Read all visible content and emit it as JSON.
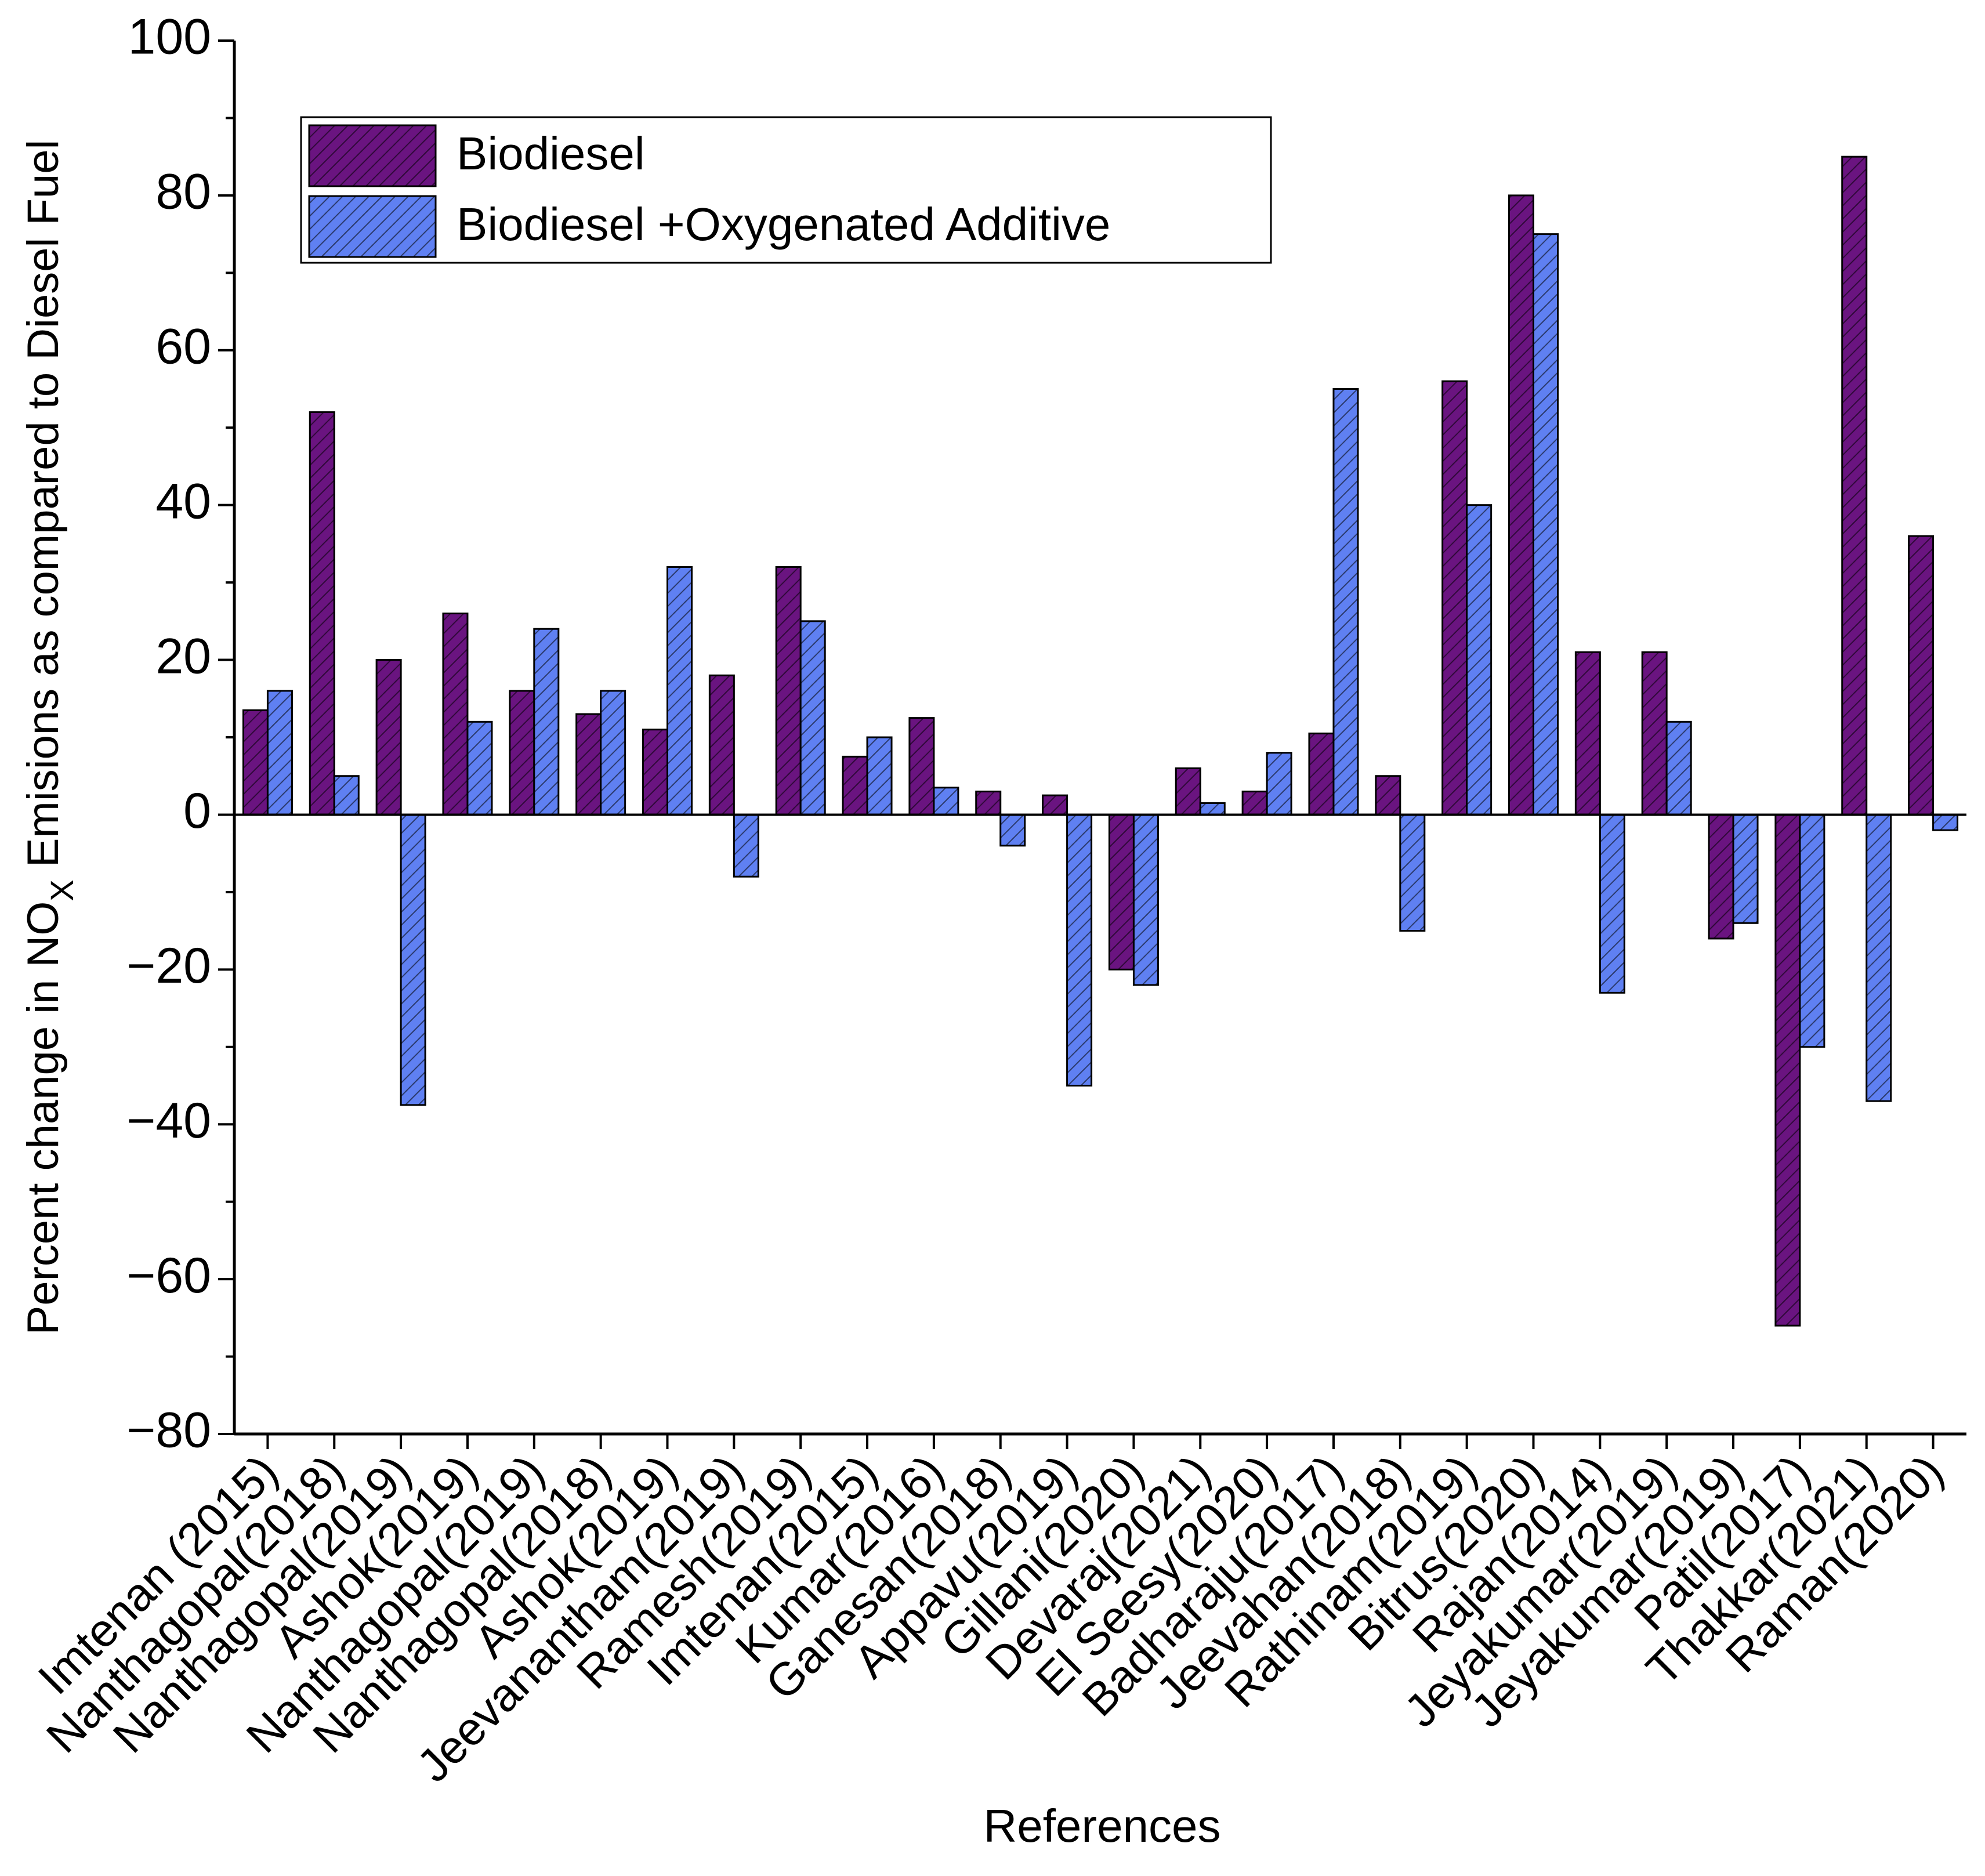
{
  "chart_data": {
    "type": "bar",
    "xlabel": "References",
    "ylabel": {
      "before": "Percent change in NO",
      "subscript": "X",
      "after": " Emisions as compared to Diesel Fuel"
    },
    "categories": [
      "Imtenan (2015)",
      "Nanthagopal(2018)",
      "Nanthagopal(2019)",
      "Ashok(2019)",
      "Nanthagopal(2019)",
      "Nanthagopal(2018)",
      "Ashok(2019)",
      "Jeevanantham(2019)",
      "Ramesh(2019)",
      "Imtenan(2015)",
      "Kumar(2016)",
      "Ganesan(2018)",
      "Appavu(2019)",
      "Gillani(2020)",
      "Devaraj(2021)",
      "El Seesy(2020)",
      "Badharaju(2017)",
      "Jeevahan(2018)",
      "Rathinam(2019)",
      "Bitrus(2020)",
      "Rajan(2014)",
      "Jeyakumar(2019)",
      "Jeyakumar(2019)",
      "Patil(2017)",
      "Thakkar(2021)",
      "Raman(2020)"
    ],
    "series": [
      {
        "name": "Biodiesel",
        "color": "#6a1480",
        "values": [
          13.5,
          52,
          20,
          26,
          16,
          13,
          11,
          18,
          32,
          7.5,
          12.5,
          3,
          2.5,
          -20,
          6,
          3,
          10.5,
          5,
          56,
          80,
          21,
          21,
          -16,
          -66,
          85,
          36
        ]
      },
      {
        "name": "Biodiesel +Oxygenated Additive",
        "color": "#5f80f2",
        "values": [
          16,
          5,
          -37.5,
          12,
          24,
          16,
          32,
          -8,
          25,
          10,
          3.5,
          -4,
          -35,
          -22,
          1.5,
          8,
          55,
          -15,
          40,
          75,
          -23,
          12,
          -14,
          -30,
          -37,
          -2
        ]
      }
    ],
    "ylim": [
      -80,
      100
    ],
    "yticks": [
      {
        "value": -80,
        "label": "−80"
      },
      {
        "value": -60,
        "label": "−60"
      },
      {
        "value": -40,
        "label": "−40"
      },
      {
        "value": -20,
        "label": "−20"
      },
      0,
      20,
      40,
      60,
      80,
      100
    ],
    "yminor_ticks": [
      -70,
      -50,
      -30,
      -10,
      10,
      30,
      50,
      70,
      90
    ],
    "legend": "upper left",
    "hatch": true
  }
}
